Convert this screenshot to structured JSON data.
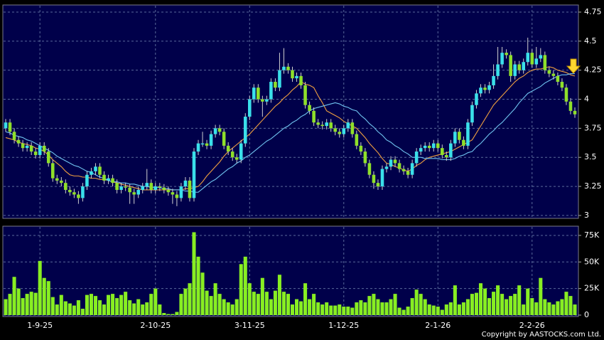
{
  "chart_data": {
    "type": "candlestick",
    "categories": [
      null,
      null,
      null,
      null,
      null,
      null,
      null,
      null,
      "1-9-25",
      null,
      null,
      null,
      null,
      null,
      null,
      null,
      null,
      null,
      null,
      null,
      null,
      null,
      null,
      null,
      null,
      null,
      null,
      null,
      null,
      null,
      null,
      null,
      null,
      null,
      null,
      "2-10-25",
      null,
      null,
      null,
      null,
      null,
      null,
      null,
      null,
      null,
      null,
      null,
      null,
      null,
      null,
      null,
      null,
      null,
      null,
      null,
      null,
      null,
      "3-11-25",
      null,
      null,
      null,
      null,
      null,
      null,
      null,
      null,
      null,
      null,
      null,
      null,
      null,
      null,
      null,
      null,
      null,
      null,
      null,
      null,
      null,
      "1-12-25",
      null,
      null,
      null,
      null,
      null,
      null,
      null,
      null,
      null,
      null,
      null,
      null,
      null,
      null,
      null,
      null,
      null,
      null,
      null,
      null,
      null,
      "2-1-26",
      null,
      null,
      null,
      null,
      null,
      null,
      null,
      null,
      null,
      null,
      null,
      null,
      null,
      null,
      null,
      null,
      null,
      null,
      null,
      null,
      null,
      "2-2-26",
      null,
      null,
      null,
      null,
      null,
      null,
      null,
      null,
      null,
      null
    ],
    "ohlc": [
      [
        3.75,
        3.83,
        3.72,
        3.8
      ],
      [
        3.8,
        3.83,
        3.69,
        3.72
      ],
      [
        3.72,
        3.75,
        3.62,
        3.65
      ],
      [
        3.65,
        3.68,
        3.59,
        3.62
      ],
      [
        3.62,
        3.65,
        3.55,
        3.58
      ],
      [
        3.58,
        3.63,
        3.55,
        3.6
      ],
      [
        3.6,
        3.63,
        3.52,
        3.55
      ],
      [
        3.55,
        3.58,
        3.49,
        3.52
      ],
      [
        3.52,
        3.63,
        3.49,
        3.6
      ],
      [
        3.6,
        3.63,
        3.52,
        3.55
      ],
      [
        3.55,
        3.58,
        3.42,
        3.45
      ],
      [
        3.45,
        3.48,
        3.29,
        3.32
      ],
      [
        3.32,
        3.35,
        3.27,
        3.3
      ],
      [
        3.3,
        3.33,
        3.25,
        3.28
      ],
      [
        3.28,
        3.31,
        3.19,
        3.22
      ],
      [
        3.22,
        3.25,
        3.17,
        3.2
      ],
      [
        3.2,
        3.23,
        3.15,
        3.18
      ],
      [
        3.18,
        3.21,
        3.1,
        3.15
      ],
      [
        3.15,
        3.28,
        3.12,
        3.25
      ],
      [
        3.25,
        3.38,
        3.22,
        3.35
      ],
      [
        3.35,
        3.41,
        3.32,
        3.38
      ],
      [
        3.38,
        3.45,
        3.35,
        3.42
      ],
      [
        3.42,
        3.45,
        3.32,
        3.35
      ],
      [
        3.35,
        3.38,
        3.27,
        3.3
      ],
      [
        3.3,
        3.35,
        3.27,
        3.32
      ],
      [
        3.32,
        3.35,
        3.25,
        3.28
      ],
      [
        3.28,
        3.31,
        3.19,
        3.22
      ],
      [
        3.22,
        3.28,
        3.19,
        3.25
      ],
      [
        3.25,
        3.28,
        3.21,
        3.24
      ],
      [
        3.24,
        3.27,
        3.1,
        3.2
      ],
      [
        3.2,
        3.23,
        3.1,
        3.18
      ],
      [
        3.18,
        3.25,
        3.15,
        3.22
      ],
      [
        3.22,
        3.28,
        3.19,
        3.25
      ],
      [
        3.25,
        3.4,
        3.22,
        3.28
      ],
      [
        3.28,
        3.31,
        3.19,
        3.22
      ],
      [
        3.22,
        3.28,
        3.19,
        3.25
      ],
      [
        3.25,
        3.28,
        3.21,
        3.24
      ],
      [
        3.24,
        3.27,
        3.19,
        3.22
      ],
      [
        3.22,
        3.25,
        3.17,
        3.2
      ],
      [
        3.2,
        3.23,
        3.1,
        3.18
      ],
      [
        3.18,
        3.21,
        3.08,
        3.15
      ],
      [
        3.15,
        3.28,
        3.12,
        3.25
      ],
      [
        3.25,
        3.33,
        3.22,
        3.3
      ],
      [
        3.3,
        3.33,
        3.12,
        3.15
      ],
      [
        3.15,
        3.58,
        3.12,
        3.55
      ],
      [
        3.55,
        3.65,
        3.52,
        3.62
      ],
      [
        3.62,
        3.72,
        3.59,
        3.62
      ],
      [
        3.62,
        3.65,
        3.57,
        3.6
      ],
      [
        3.6,
        3.73,
        3.57,
        3.7
      ],
      [
        3.7,
        3.78,
        3.67,
        3.75
      ],
      [
        3.75,
        3.78,
        3.69,
        3.72
      ],
      [
        3.72,
        3.75,
        3.57,
        3.6
      ],
      [
        3.6,
        3.63,
        3.52,
        3.55
      ],
      [
        3.55,
        3.58,
        3.47,
        3.5
      ],
      [
        3.5,
        3.53,
        3.45,
        3.48
      ],
      [
        3.48,
        3.65,
        3.45,
        3.62
      ],
      [
        3.62,
        3.88,
        3.59,
        3.85
      ],
      [
        3.85,
        4.03,
        3.82,
        4.0
      ],
      [
        4.0,
        4.13,
        3.97,
        4.1
      ],
      [
        4.1,
        4.13,
        3.97,
        4.0
      ],
      [
        4.0,
        4.03,
        3.85,
        3.98
      ],
      [
        3.98,
        4.03,
        3.95,
        4.0
      ],
      [
        4.0,
        4.18,
        3.97,
        4.15
      ],
      [
        4.15,
        4.18,
        4.07,
        4.1
      ],
      [
        4.1,
        4.4,
        4.07,
        4.25
      ],
      [
        4.25,
        4.44,
        4.22,
        4.28
      ],
      [
        4.28,
        4.31,
        4.22,
        4.25
      ],
      [
        4.25,
        4.28,
        4.15,
        4.18
      ],
      [
        4.18,
        4.23,
        4.15,
        4.2
      ],
      [
        4.2,
        4.23,
        4.09,
        4.12
      ],
      [
        4.12,
        4.15,
        3.92,
        3.95
      ],
      [
        3.95,
        3.98,
        3.87,
        3.9
      ],
      [
        3.9,
        3.93,
        3.77,
        3.8
      ],
      [
        3.8,
        3.83,
        3.75,
        3.78
      ],
      [
        3.78,
        3.81,
        3.74,
        3.77
      ],
      [
        3.77,
        3.83,
        3.74,
        3.8
      ],
      [
        3.8,
        3.83,
        3.72,
        3.75
      ],
      [
        3.75,
        3.78,
        3.69,
        3.72
      ],
      [
        3.72,
        3.75,
        3.67,
        3.7
      ],
      [
        3.7,
        3.78,
        3.67,
        3.75
      ],
      [
        3.75,
        3.83,
        3.72,
        3.8
      ],
      [
        3.8,
        3.83,
        3.67,
        3.7
      ],
      [
        3.7,
        3.73,
        3.57,
        3.6
      ],
      [
        3.6,
        3.63,
        3.52,
        3.55
      ],
      [
        3.55,
        3.58,
        3.42,
        3.45
      ],
      [
        3.45,
        3.48,
        3.32,
        3.35
      ],
      [
        3.35,
        3.38,
        3.23,
        3.28
      ],
      [
        3.28,
        3.31,
        3.22,
        3.25
      ],
      [
        3.25,
        3.43,
        3.22,
        3.4
      ],
      [
        3.4,
        3.45,
        3.37,
        3.42
      ],
      [
        3.42,
        3.51,
        3.39,
        3.48
      ],
      [
        3.48,
        3.51,
        3.42,
        3.45
      ],
      [
        3.45,
        3.48,
        3.37,
        3.4
      ],
      [
        3.4,
        3.43,
        3.35,
        3.38
      ],
      [
        3.38,
        3.41,
        3.32,
        3.35
      ],
      [
        3.35,
        3.48,
        3.32,
        3.45
      ],
      [
        3.45,
        3.58,
        3.42,
        3.55
      ],
      [
        3.55,
        3.61,
        3.52,
        3.58
      ],
      [
        3.58,
        3.63,
        3.55,
        3.6
      ],
      [
        3.6,
        3.63,
        3.55,
        3.58
      ],
      [
        3.58,
        3.65,
        3.55,
        3.62
      ],
      [
        3.62,
        3.65,
        3.55,
        3.58
      ],
      [
        3.58,
        3.61,
        3.49,
        3.52
      ],
      [
        3.52,
        3.55,
        3.47,
        3.5
      ],
      [
        3.5,
        3.65,
        3.47,
        3.62
      ],
      [
        3.62,
        3.75,
        3.59,
        3.72
      ],
      [
        3.72,
        3.75,
        3.62,
        3.65
      ],
      [
        3.65,
        3.68,
        3.57,
        3.6
      ],
      [
        3.6,
        3.83,
        3.57,
        3.8
      ],
      [
        3.8,
        3.98,
        3.77,
        3.95
      ],
      [
        3.95,
        4.08,
        3.92,
        4.05
      ],
      [
        4.05,
        4.13,
        4.02,
        4.1
      ],
      [
        4.1,
        4.13,
        4.05,
        4.08
      ],
      [
        4.08,
        4.15,
        4.05,
        4.12
      ],
      [
        4.12,
        4.3,
        4.09,
        4.2
      ],
      [
        4.2,
        4.45,
        4.17,
        4.3
      ],
      [
        4.3,
        4.45,
        4.27,
        4.4
      ],
      [
        4.4,
        4.43,
        4.35,
        4.38
      ],
      [
        4.38,
        4.41,
        4.15,
        4.2
      ],
      [
        4.2,
        4.33,
        4.17,
        4.3
      ],
      [
        4.3,
        4.33,
        4.22,
        4.25
      ],
      [
        4.25,
        4.35,
        4.22,
        4.32
      ],
      [
        4.32,
        4.53,
        4.29,
        4.4
      ],
      [
        4.4,
        4.43,
        4.27,
        4.3
      ],
      [
        4.3,
        4.45,
        4.27,
        4.35
      ],
      [
        4.35,
        4.44,
        4.32,
        4.38
      ],
      [
        4.38,
        4.41,
        4.22,
        4.25
      ],
      [
        4.25,
        4.28,
        4.19,
        4.22
      ],
      [
        4.22,
        4.25,
        4.17,
        4.2
      ],
      [
        4.2,
        4.23,
        4.12,
        4.15
      ],
      [
        4.15,
        4.18,
        4.07,
        4.1
      ],
      [
        4.1,
        4.13,
        3.95,
        3.98
      ],
      [
        3.98,
        4.01,
        3.87,
        3.9
      ],
      [
        3.9,
        3.93,
        3.84,
        3.87
      ]
    ],
    "up_color": "#3ae0ea",
    "down_color": "#8fe02a",
    "ylim": [
      2.975,
      4.805
    ],
    "yticks": [
      3,
      3.25,
      3.5,
      3.75,
      4,
      4.25,
      4.5,
      4.75
    ],
    "grid": true,
    "series": [
      {
        "color": "#f0a040",
        "values": [
          3.67,
          3.66,
          3.65,
          3.63,
          3.62,
          3.61,
          3.6,
          3.58,
          3.57,
          3.55,
          3.52,
          3.48,
          3.45,
          3.42,
          3.38,
          3.35,
          3.34,
          3.34,
          3.33,
          3.33,
          3.32,
          3.32,
          3.31,
          3.31,
          3.3,
          3.29,
          3.28,
          3.27,
          3.26,
          3.25,
          3.24,
          3.23,
          3.22,
          3.22,
          3.22,
          3.22,
          3.22,
          3.22,
          3.22,
          3.22,
          3.22,
          3.22,
          3.23,
          3.23,
          3.24,
          3.25,
          3.29,
          3.34,
          3.38,
          3.42,
          3.46,
          3.51,
          3.55,
          3.58,
          3.61,
          3.64,
          3.67,
          3.7,
          3.74,
          3.78,
          3.82,
          3.86,
          3.9,
          3.94,
          3.97,
          4.01,
          4.04,
          4.08,
          4.11,
          4.15,
          4.13,
          4.12,
          4.1,
          4.03,
          3.97,
          3.9,
          3.88,
          3.86,
          3.84,
          3.81,
          3.79,
          3.77,
          3.75,
          3.71,
          3.67,
          3.62,
          3.58,
          3.54,
          3.49,
          3.45,
          3.44,
          3.42,
          3.41,
          3.39,
          3.38,
          3.4,
          3.43,
          3.45,
          3.48,
          3.5,
          3.51,
          3.52,
          3.53,
          3.54,
          3.55,
          3.57,
          3.59,
          3.61,
          3.63,
          3.65,
          3.71,
          3.77,
          3.83,
          3.89,
          3.95,
          3.99,
          4.03,
          4.07,
          4.11,
          4.15,
          4.18,
          4.2,
          4.23,
          4.25,
          4.26,
          4.26,
          4.27,
          4.28,
          4.27,
          4.25,
          4.24,
          4.23,
          4.21,
          4.2
        ]
      },
      {
        "color": "#70c4f0",
        "values": [
          3.72,
          3.71,
          3.69,
          3.68,
          3.67,
          3.65,
          3.64,
          3.62,
          3.6,
          3.58,
          3.56,
          3.54,
          3.51,
          3.49,
          3.47,
          3.45,
          3.43,
          3.42,
          3.4,
          3.38,
          3.37,
          3.35,
          3.33,
          3.32,
          3.3,
          3.29,
          3.29,
          3.28,
          3.28,
          3.27,
          3.27,
          3.26,
          3.25,
          3.25,
          3.24,
          3.24,
          3.24,
          3.23,
          3.23,
          3.22,
          3.22,
          3.22,
          3.21,
          3.21,
          3.2,
          3.2,
          3.23,
          3.26,
          3.29,
          3.31,
          3.34,
          3.37,
          3.4,
          3.42,
          3.45,
          3.47,
          3.5,
          3.52,
          3.55,
          3.58,
          3.61,
          3.64,
          3.66,
          3.69,
          3.72,
          3.75,
          3.77,
          3.8,
          3.82,
          3.85,
          3.87,
          3.9,
          3.92,
          3.93,
          3.94,
          3.95,
          3.96,
          3.97,
          3.96,
          3.94,
          3.93,
          3.91,
          3.9,
          3.86,
          3.83,
          3.79,
          3.76,
          3.72,
          3.69,
          3.65,
          3.63,
          3.6,
          3.58,
          3.55,
          3.53,
          3.5,
          3.5,
          3.5,
          3.49,
          3.49,
          3.49,
          3.49,
          3.48,
          3.48,
          3.48,
          3.49,
          3.51,
          3.52,
          3.54,
          3.55,
          3.59,
          3.62,
          3.66,
          3.7,
          3.73,
          3.77,
          3.8,
          3.84,
          3.88,
          3.92,
          3.97,
          4.01,
          4.05,
          4.07,
          4.09,
          4.11,
          4.14,
          4.16,
          4.18,
          4.2,
          4.21,
          4.21,
          4.22,
          4.22
        ]
      }
    ],
    "volume": {
      "color": "#88ee22",
      "values": [
        15000,
        20000,
        36000,
        25000,
        16000,
        20000,
        22000,
        21000,
        51000,
        35000,
        32000,
        17000,
        10000,
        19000,
        13000,
        11000,
        9000,
        14000,
        6000,
        19000,
        20000,
        18000,
        14000,
        10000,
        19000,
        20000,
        16000,
        19000,
        22000,
        14000,
        11000,
        15000,
        10000,
        12000,
        20000,
        25000,
        10000,
        2000,
        1000,
        1000,
        3000,
        20000,
        25000,
        30000,
        78000,
        55000,
        40000,
        23000,
        18000,
        30000,
        20000,
        15000,
        12000,
        10000,
        15000,
        48000,
        55000,
        30000,
        22000,
        20000,
        35000,
        22000,
        15000,
        23000,
        38000,
        22000,
        20000,
        10000,
        15000,
        13000,
        30000,
        15000,
        20000,
        12000,
        10000,
        12000,
        9000,
        9000,
        10000,
        8000,
        8000,
        7000,
        12000,
        14000,
        12000,
        18000,
        20000,
        15000,
        12000,
        12000,
        15000,
        20000,
        7000,
        5000,
        8000,
        16000,
        24000,
        20000,
        15000,
        10000,
        9000,
        8000,
        5000,
        10000,
        12000,
        28000,
        10000,
        12000,
        15000,
        20000,
        21000,
        30000,
        25000,
        16000,
        22000,
        28000,
        20000,
        15000,
        18000,
        20000,
        28000,
        10000,
        25000,
        16000,
        12000,
        35000,
        15000,
        12000,
        10000,
        13000,
        15000,
        22000,
        18000,
        10000
      ],
      "ylim": [
        0,
        83000
      ],
      "yticks": [
        0,
        {
          "value": 25000,
          "label": "25K"
        },
        {
          "value": 50000,
          "label": "50K"
        },
        {
          "value": 75000,
          "label": "75K"
        }
      ]
    }
  },
  "copyright": "Copyright by AASTOCKS.com Ltd."
}
